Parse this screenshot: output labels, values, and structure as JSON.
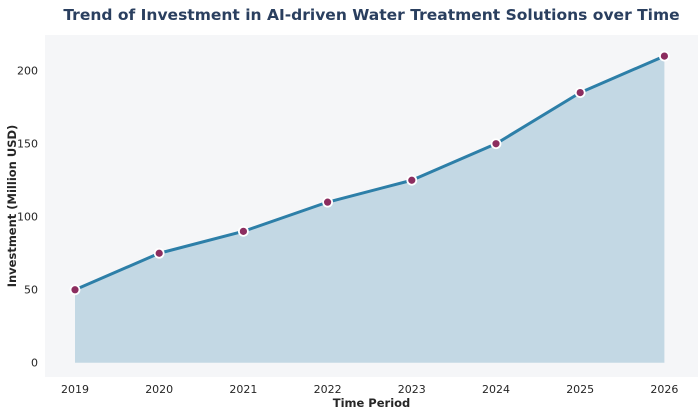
{
  "chart_data": {
    "type": "area",
    "title": "Trend of Investment in AI-driven Water Treatment Solutions over Time",
    "xlabel": "Time Period",
    "ylabel": "Investment (Million USD)",
    "categories": [
      "2019",
      "2020",
      "2021",
      "2022",
      "2023",
      "2024",
      "2025",
      "2026"
    ],
    "series": [
      {
        "name": "Investment",
        "values": [
          50,
          75,
          90,
          110,
          125,
          150,
          185,
          210
        ]
      }
    ],
    "yticks": [
      0,
      50,
      100,
      150,
      200
    ],
    "ylim": [
      -10.5,
      224
    ],
    "grid": false,
    "legend_position": "none",
    "colors": {
      "line": "#2d7fa8",
      "area_fill": "#c3d8e4",
      "marker": "#8c2d5f",
      "marker_edge": "#ffffff",
      "plot_background": "#f5f6f8",
      "figure_background": "#ffffff",
      "title_text": "#2a3f5f",
      "tick_text": "#262626"
    }
  }
}
